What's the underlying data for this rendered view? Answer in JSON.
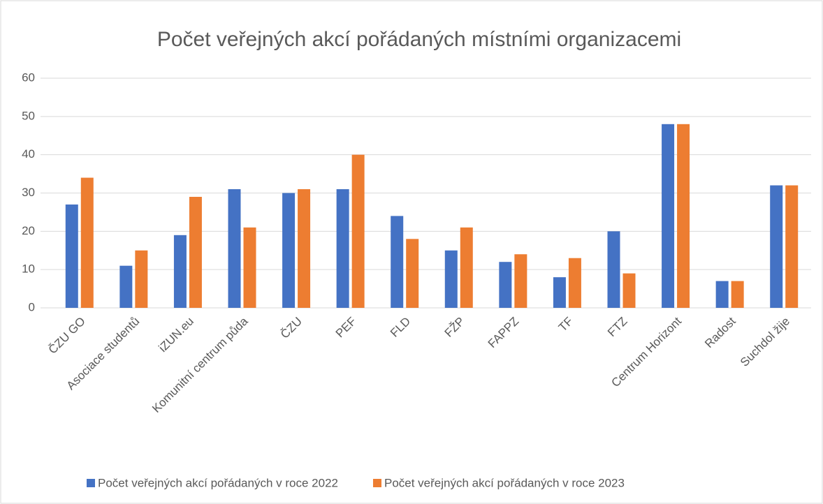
{
  "chart_data": {
    "type": "bar",
    "title": "Počet veřejných akcí pořádaných místními organizacemi",
    "categories": [
      "ČZU GO",
      "Asociace studentů",
      "iZUN.eu",
      "Komunitní centrum půda",
      "ČZU",
      "PEF",
      "FLD",
      "FŽP",
      "FAPPZ",
      "TF",
      "FTZ",
      "Centrum Horizont",
      "Radost",
      "Suchdol žije"
    ],
    "series": [
      {
        "name": "Počet veřejných akcí pořádaných v roce 2022",
        "color": "#4472c4",
        "values": [
          27,
          11,
          19,
          31,
          30,
          31,
          24,
          15,
          12,
          8,
          20,
          48,
          7,
          32
        ]
      },
      {
        "name": "Počet veřejných akcí pořádaných v roce 2023",
        "color": "#ed7d31",
        "values": [
          34,
          15,
          29,
          21,
          31,
          40,
          18,
          21,
          14,
          13,
          9,
          48,
          7,
          32
        ]
      }
    ],
    "ylim": [
      0,
      60
    ],
    "yticks": [
      0,
      10,
      20,
      30,
      40,
      50,
      60
    ],
    "grid": true,
    "legend": "bottom"
  }
}
